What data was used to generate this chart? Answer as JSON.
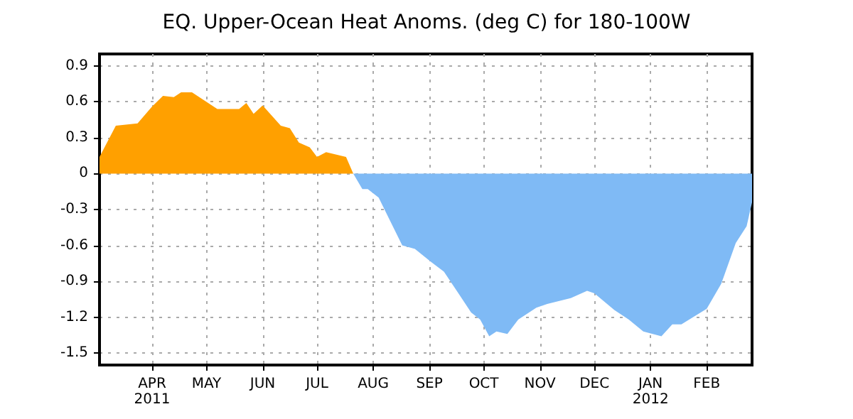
{
  "chart_data": {
    "type": "area",
    "title": "EQ. Upper-Ocean Heat Anoms. (deg C) for 180-100W",
    "series": [
      {
        "color": "#ffa000",
        "x": [
          "2011-03-03",
          "2011-03-12",
          "2011-03-24",
          "2011-04-01",
          "2011-04-07",
          "2011-04-13",
          "2011-04-17",
          "2011-04-23",
          "2011-05-07",
          "2011-05-12",
          "2011-05-19",
          "2011-05-23",
          "2011-05-27",
          "2011-06-01",
          "2011-06-11",
          "2011-06-16",
          "2011-06-21",
          "2011-06-27",
          "2011-07-01",
          "2011-07-06",
          "2011-07-17",
          "2011-07-21"
        ],
        "values": [
          0.14,
          0.4,
          0.42,
          0.56,
          0.65,
          0.64,
          0.68,
          0.68,
          0.54,
          0.54,
          0.54,
          0.59,
          0.5,
          0.57,
          0.4,
          0.38,
          0.26,
          0.22,
          0.14,
          0.18,
          0.14,
          0
        ]
      },
      {
        "color": "#7fbaf5",
        "x": [
          "2011-07-21",
          "2011-07-26",
          "2011-07-29",
          "2011-08-04",
          "2011-08-17",
          "2011-08-24",
          "2011-09-02",
          "2011-09-09",
          "2011-09-17",
          "2011-09-24",
          "2011-09-29",
          "2011-10-04",
          "2011-10-08",
          "2011-10-14",
          "2011-10-20",
          "2011-10-30",
          "2011-11-05",
          "2011-11-18",
          "2011-11-27",
          "2011-12-01",
          "2011-12-12",
          "2011-12-20",
          "2011-12-28",
          "2012-01-07",
          "2012-01-13",
          "2012-01-18",
          "2012-02-01",
          "2012-02-09",
          "2012-02-17",
          "2012-02-23",
          "2012-02-26"
        ],
        "values": [
          0,
          -0.13,
          -0.13,
          -0.2,
          -0.6,
          -0.63,
          -0.74,
          -0.82,
          -1.0,
          -1.16,
          -1.22,
          -1.36,
          -1.32,
          -1.34,
          -1.22,
          -1.12,
          -1.09,
          -1.04,
          -0.98,
          -1.0,
          -1.14,
          -1.22,
          -1.32,
          -1.36,
          -1.26,
          -1.26,
          -1.13,
          -0.92,
          -0.58,
          -0.44,
          -0.24
        ]
      }
    ],
    "xlim": [
      "2011-03-03",
      "2012-02-26"
    ],
    "xticks": [
      {
        "value": "2011-04-01",
        "label": "APR\n2011"
      },
      {
        "value": "2011-05-01",
        "label": "MAY"
      },
      {
        "value": "2011-06-01",
        "label": "JUN"
      },
      {
        "value": "2011-07-01",
        "label": "JUL"
      },
      {
        "value": "2011-08-01",
        "label": "AUG"
      },
      {
        "value": "2011-09-01",
        "label": "SEP"
      },
      {
        "value": "2011-10-01",
        "label": "OCT"
      },
      {
        "value": "2011-11-01",
        "label": "NOV"
      },
      {
        "value": "2011-12-01",
        "label": "DEC"
      },
      {
        "value": "2012-01-01",
        "label": "JAN\n2012"
      },
      {
        "value": "2012-02-01",
        "label": "FEB"
      }
    ],
    "ylim": [
      -1.6,
      1.0
    ],
    "yticks": [
      -1.5,
      -1.2,
      -0.9,
      -0.6,
      -0.3,
      0,
      0.3,
      0.6,
      0.9
    ],
    "grid": true,
    "marker": "none"
  }
}
